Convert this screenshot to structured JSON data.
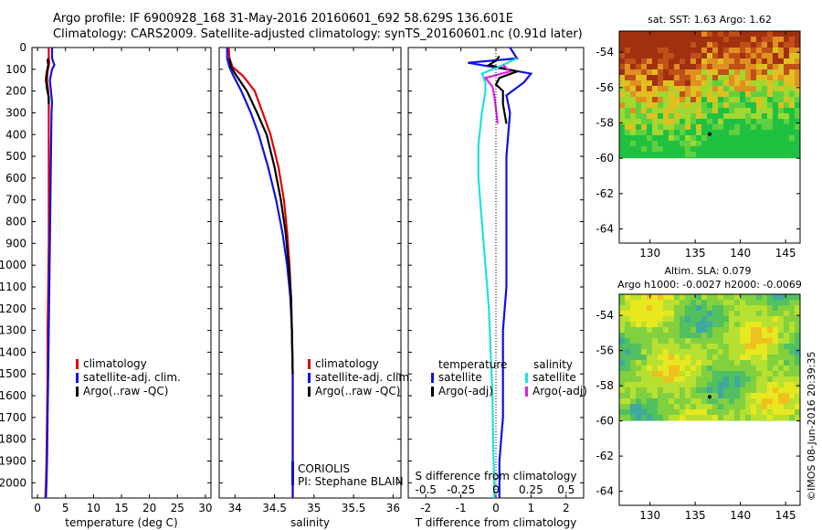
{
  "header": {
    "line1": "Argo profile: IF 6900928_168 31-May-2016 20160601_692 58.629S 136.601E",
    "line2": "Climatology: CARS2009. Satellite-adjusted climatology: synTS_20160601.nc (0.91d later)"
  },
  "colors": {
    "climatology": "#e00000",
    "satellite": "#1010e0",
    "argo": "#000000",
    "sat_salinity": "#20e0e0",
    "argo_salinity": "#e020e0"
  },
  "chart_data": [
    {
      "type": "line",
      "id": "temperature",
      "xlabel": "temperature (deg C)",
      "xlim": [
        -1,
        31
      ],
      "xticks": [
        0,
        5,
        10,
        15,
        20,
        25,
        30
      ],
      "ylim": [
        2070,
        0
      ],
      "yticks": [
        0,
        100,
        200,
        300,
        400,
        500,
        600,
        700,
        800,
        900,
        1000,
        1100,
        1200,
        1300,
        1400,
        1500,
        1600,
        1700,
        1800,
        1900,
        2000
      ],
      "legend": [
        "climatology",
        "satellite-adj. clim.",
        "Argo(..raw -QC)"
      ],
      "series": [
        {
          "key": "climatology",
          "color": "#e00000",
          "x": [
            2.0,
            2.0,
            2.1,
            1.8,
            1.7,
            1.9,
            2.0,
            2.0,
            2.0,
            2.0,
            2.0,
            1.9,
            1.8,
            1.8,
            1.7,
            1.6,
            1.5,
            1.4
          ],
          "y": [
            0,
            50,
            70,
            110,
            150,
            200,
            250,
            300,
            500,
            700,
            900,
            1100,
            1300,
            1500,
            1700,
            1900,
            2000,
            2070
          ]
        },
        {
          "key": "satellite",
          "color": "#1010e0",
          "x": [
            2.6,
            2.6,
            3.0,
            2.6,
            2.2,
            2.4,
            2.6,
            2.5,
            2.4,
            2.3,
            2.2,
            2.1,
            2.0,
            1.9,
            1.8,
            1.7,
            1.6,
            1.5
          ],
          "y": [
            0,
            50,
            80,
            100,
            150,
            200,
            250,
            300,
            500,
            700,
            900,
            1100,
            1300,
            1500,
            1700,
            1900,
            2000,
            2070
          ]
        },
        {
          "key": "argo",
          "color": "#000000",
          "x": [
            1.9,
            1.8,
            1.9,
            1.6,
            1.5,
            1.7,
            2.0,
            2.0
          ],
          "y": [
            50,
            60,
            80,
            120,
            150,
            190,
            230,
            260
          ]
        }
      ]
    },
    {
      "type": "line",
      "id": "salinity",
      "xlabel": "salinity",
      "xlim": [
        33.8,
        36.1
      ],
      "xticks": [
        34,
        34.5,
        35,
        35.5,
        36
      ],
      "ylim": [
        2070,
        0
      ],
      "legend": [
        "climatology",
        "satellite-adj. clim.",
        "Argo(..raw -QC)"
      ],
      "annotations": [
        "CORIOLIS",
        "PI: Stephane BLAIN"
      ],
      "series": [
        {
          "key": "climatology",
          "color": "#e00000",
          "x": [
            33.92,
            33.93,
            33.97,
            34.1,
            34.25,
            34.35,
            34.45,
            34.55,
            34.62,
            34.66,
            34.69,
            34.71,
            34.72,
            34.73,
            34.73,
            34.73,
            34.73,
            34.73,
            34.73
          ],
          "y": [
            0,
            50,
            90,
            130,
            200,
            300,
            400,
            550,
            700,
            850,
            1000,
            1150,
            1300,
            1500,
            1700,
            1900,
            2000,
            2050,
            2070
          ]
        },
        {
          "key": "satellite",
          "color": "#1010e0",
          "x": [
            33.9,
            33.9,
            33.93,
            33.98,
            34.08,
            34.2,
            34.3,
            34.42,
            34.52,
            34.6,
            34.66,
            34.7,
            34.72,
            34.73,
            34.73,
            34.73,
            34.73,
            34.73
          ],
          "y": [
            0,
            50,
            90,
            130,
            200,
            300,
            400,
            550,
            700,
            850,
            1000,
            1150,
            1300,
            1500,
            1700,
            1900,
            2000,
            2070
          ]
        },
        {
          "key": "argo",
          "color": "#000000",
          "x": [
            33.93,
            33.95,
            34.02,
            34.15,
            34.28,
            34.4,
            34.5,
            34.58,
            34.64,
            34.68,
            34.71,
            34.72,
            34.73
          ],
          "y": [
            50,
            90,
            130,
            200,
            300,
            400,
            550,
            700,
            850,
            1000,
            1150,
            1300,
            1500
          ]
        }
      ]
    },
    {
      "type": "line",
      "id": "differences",
      "xlabel": "T difference from climatology",
      "xlabel_top": "S difference from climatology",
      "xlim": [
        -2.5,
        2.5
      ],
      "xticks": [
        -2,
        -1,
        0,
        1,
        2
      ],
      "xticks_top": [
        -0.5,
        -0.25,
        0,
        0.25,
        0.5
      ],
      "ylim": [
        2070,
        0
      ],
      "legend_headers": [
        "temperature",
        "salinity"
      ],
      "legend_temperature": [
        "satellite",
        "Argo(-adj)"
      ],
      "legend_salinity": [
        "satellite",
        "Argo(-adj)"
      ],
      "series": [
        {
          "key": "t_satellite",
          "color": "#1010e0",
          "x": [
            0.4,
            0.6,
            -0.8,
            0.3,
            1.0,
            0.8,
            0.3,
            0.4,
            0.3,
            0.3,
            0.3,
            0.3,
            0.2,
            0.2,
            0.2,
            0.1,
            0.1
          ],
          "y": [
            0,
            50,
            70,
            100,
            120,
            160,
            220,
            300,
            500,
            700,
            900,
            1100,
            1300,
            1500,
            1700,
            1900,
            2070
          ]
        },
        {
          "key": "t_argo",
          "color": "#000000",
          "x": [
            0.1,
            0.0,
            -0.2,
            0.6,
            0.1,
            0.0,
            0.2,
            0.2,
            0.3
          ],
          "y": [
            40,
            60,
            80,
            110,
            140,
            170,
            200,
            260,
            350
          ]
        },
        {
          "key": "s_satellite",
          "color": "#20e0e0",
          "x": [
            0.6,
            0.2,
            -0.4,
            -0.3,
            -0.3,
            -0.4,
            -0.5,
            -0.5,
            -0.4,
            -0.3,
            -0.2,
            -0.15,
            -0.1,
            -0.08,
            -0.05,
            -0.05
          ],
          "y": [
            50,
            80,
            120,
            160,
            200,
            300,
            450,
            600,
            800,
            1000,
            1200,
            1400,
            1600,
            1800,
            2000,
            2070
          ]
        },
        {
          "key": "s_argo",
          "color": "#e020e0",
          "x": [
            0.2,
            0.4,
            -0.3,
            -0.1,
            -0.05,
            0.0,
            0.05
          ],
          "y": [
            80,
            110,
            140,
            180,
            220,
            280,
            350
          ]
        }
      ]
    },
    {
      "type": "heatmap",
      "id": "sst_map",
      "title": "sat. SST: 1.63 Argo: 1.62",
      "xlim": [
        126.6,
        146.6
      ],
      "ylim": [
        -64.8,
        -52.8
      ],
      "xticks": [
        130,
        135,
        140,
        145
      ],
      "yticks": [
        -54,
        -56,
        -58,
        -60,
        -62,
        -64
      ],
      "data_bottom": -60,
      "marker": [
        136.601,
        -58.629
      ]
    },
    {
      "type": "heatmap",
      "id": "sla_map",
      "title": "Altim. SLA: 0.079",
      "subtitle": "Argo h1000: -0.0027 h2000: -0.0069",
      "xlim": [
        126.6,
        146.6
      ],
      "ylim": [
        -64.8,
        -52.8
      ],
      "xticks": [
        130,
        135,
        140,
        145
      ],
      "yticks": [
        -54,
        -56,
        -58,
        -60,
        -62,
        -64
      ],
      "data_bottom": -60,
      "marker": [
        136.601,
        -58.629
      ]
    }
  ],
  "watermark": "©IMOS 08-Jun-2016 20:39:35"
}
